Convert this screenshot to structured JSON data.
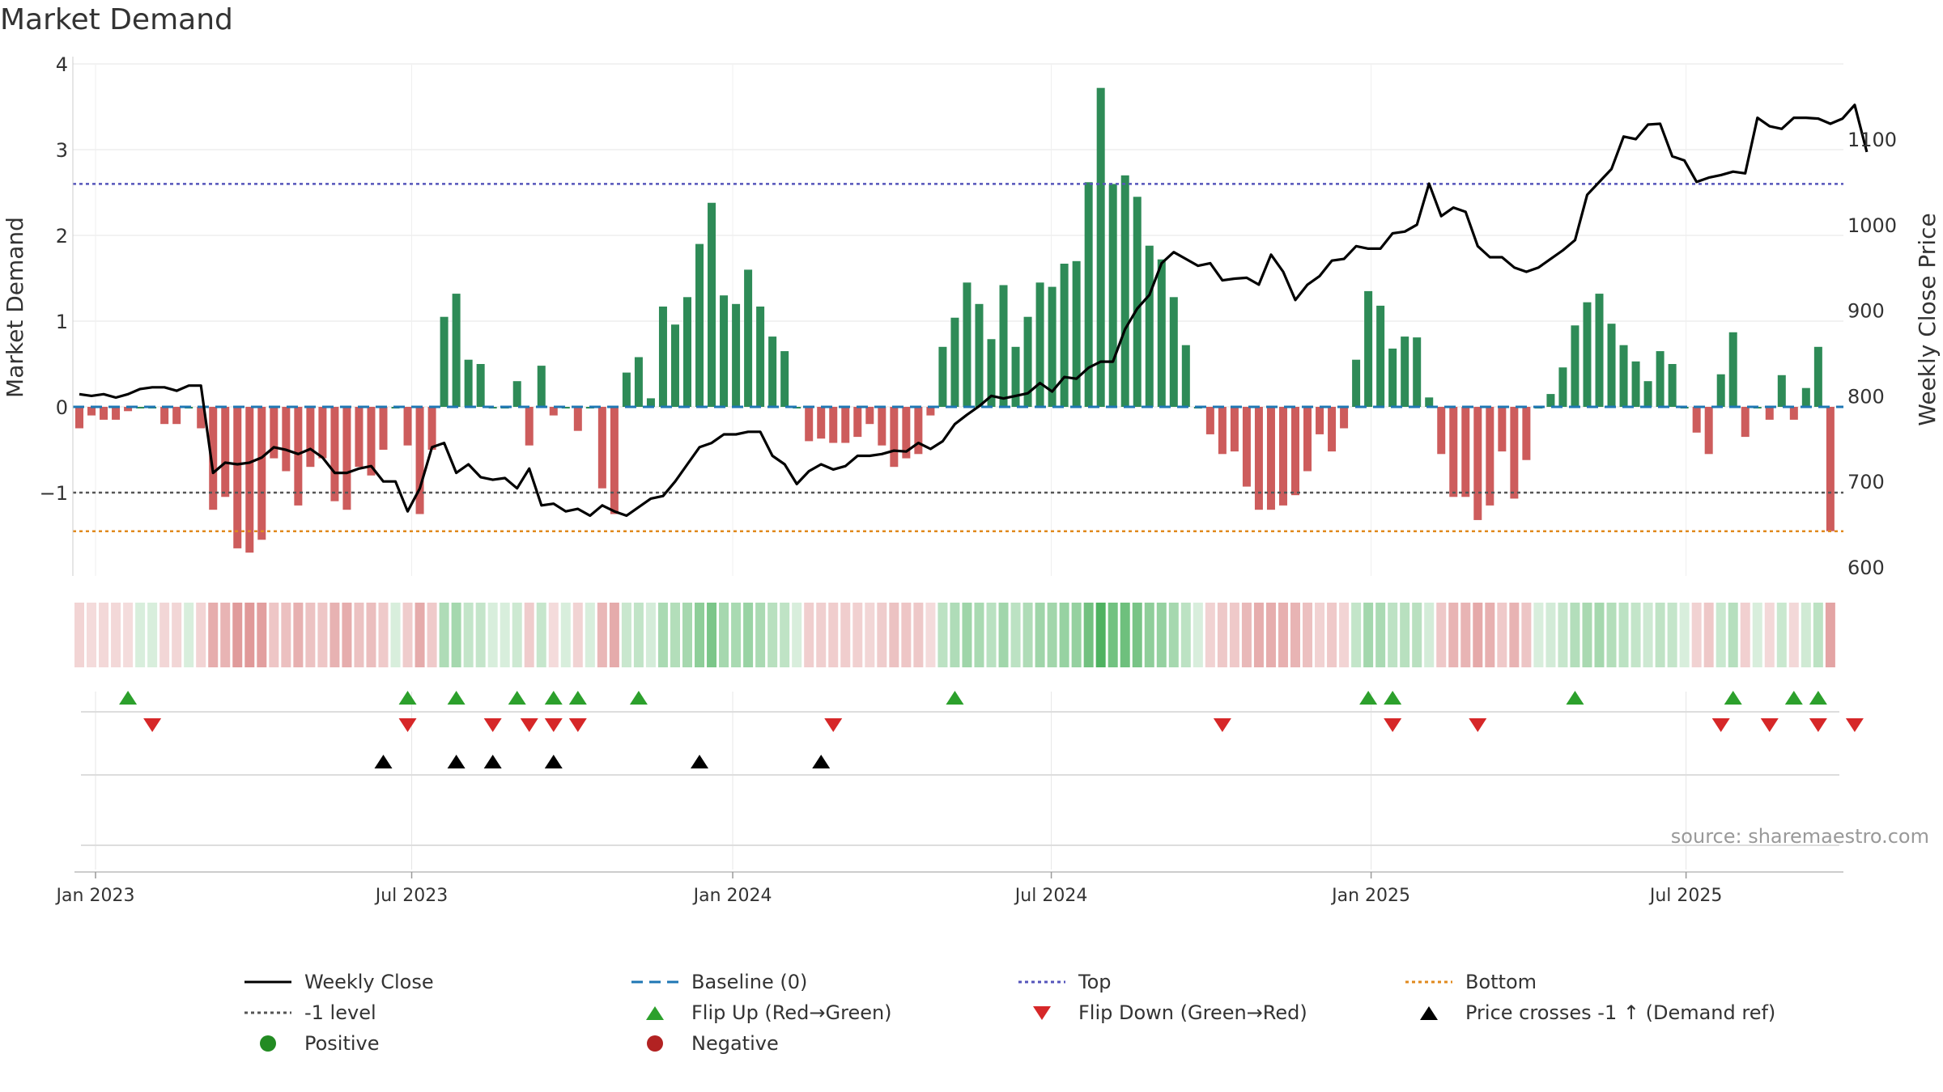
{
  "chart_data": {
    "type": "bar",
    "title": "Market Demand",
    "ylabel": "Market Demand",
    "y2label": "Weekly Close Price",
    "ylim": [
      -2,
      4
    ],
    "y_ticks": [
      "4",
      "3",
      "2",
      "1",
      "0",
      "−1"
    ],
    "y2lim": [
      600,
      1200
    ],
    "y2_ticks": [
      "1100",
      "1000",
      "900",
      "800",
      "700",
      "600"
    ],
    "x_tick_labels": [
      "Jan 2023",
      "Jul 2023",
      "Jan 2024",
      "Jul 2024",
      "Jan 2025",
      "Jul 2025"
    ],
    "x_tick_weeks": [
      0,
      26,
      52.4,
      78.6,
      104.9,
      130.8
    ],
    "levels": {
      "top": 2.6,
      "bottom": -1.45,
      "minus_one": -1,
      "baseline": 0
    },
    "series": [
      {
        "name": "Market Demand",
        "values": [
          -0.25,
          -0.1,
          -0.15,
          -0.15,
          -0.05,
          0,
          0,
          -0.2,
          -0.2,
          0,
          -0.25,
          -1.2,
          -1.05,
          -1.65,
          -1.7,
          -1.55,
          -0.6,
          -0.75,
          -1.15,
          -0.7,
          -0.6,
          -1.1,
          -1.2,
          -0.7,
          -0.8,
          -0.5,
          0,
          -0.45,
          -1.25,
          -0.5,
          1.05,
          1.32,
          0.55,
          0.5,
          0,
          0,
          0.3,
          -0.45,
          0.48,
          -0.1,
          0,
          -0.28,
          0,
          -0.95,
          -1.25,
          0.4,
          0.58,
          0.1,
          1.17,
          0.96,
          1.28,
          1.9,
          2.38,
          1.3,
          1.2,
          1.6,
          1.17,
          0.82,
          0.65,
          0,
          -0.4,
          -0.37,
          -0.42,
          -0.42,
          -0.35,
          -0.2,
          -0.45,
          -0.7,
          -0.6,
          -0.55,
          -0.1,
          0.7,
          1.04,
          1.45,
          1.2,
          0.79,
          1.42,
          0.7,
          1.05,
          1.45,
          1.4,
          1.67,
          1.7,
          2.62,
          3.72,
          2.6,
          2.7,
          2.45,
          1.88,
          1.72,
          1.28,
          0.72,
          0,
          -0.32,
          -0.55,
          -0.52,
          -0.93,
          -1.2,
          -1.2,
          -1.15,
          -1.03,
          -0.75,
          -0.32,
          -0.52,
          -0.25,
          0.55,
          1.35,
          1.18,
          0.68,
          0.82,
          0.81,
          0.11,
          -0.55,
          -1.05,
          -1.05,
          -1.32,
          -1.15,
          -0.52,
          -1.07,
          -0.62,
          0,
          0.15,
          0.46,
          0.95,
          1.22,
          1.32,
          0.97,
          0.72,
          0.53,
          0.3,
          0.65,
          0.5,
          0,
          -0.3,
          -0.55,
          0.38,
          0.87,
          -0.35,
          0,
          -0.15,
          0.37,
          -0.15,
          0.22,
          0.7,
          -1.45
        ]
      },
      {
        "name": "Weekly Close",
        "values": [
          802,
          800,
          802,
          798,
          802,
          808,
          810,
          810,
          806,
          812,
          812,
          710,
          722,
          720,
          722,
          728,
          740,
          737,
          732,
          738,
          728,
          710,
          710,
          715,
          718,
          700,
          700,
          665,
          692,
          740,
          745,
          710,
          720,
          705,
          702,
          704,
          692,
          715,
          672,
          674,
          665,
          668,
          660,
          672,
          665,
          660,
          670,
          680,
          683,
          700,
          720,
          740,
          745,
          755,
          755,
          758,
          758,
          730,
          720,
          697,
          712,
          720,
          714,
          718,
          730,
          730,
          732,
          736,
          735,
          745,
          738,
          747,
          767,
          778,
          788,
          800,
          797,
          800,
          803,
          815,
          805,
          822,
          820,
          833,
          840,
          840,
          878,
          902,
          918,
          955,
          968,
          960,
          952,
          955,
          935,
          937,
          938,
          930,
          965,
          945,
          912,
          930,
          940,
          958,
          960,
          975,
          972,
          972,
          990,
          992,
          1000,
          1048,
          1010,
          1020,
          1015,
          975,
          962,
          962,
          950,
          945,
          950,
          960,
          970,
          982,
          1035,
          1050,
          1065,
          1103,
          1100,
          1117,
          1118,
          1080,
          1075,
          1050,
          1055,
          1058,
          1062,
          1060,
          1125,
          1115,
          1112,
          1125,
          1125,
          1124,
          1118,
          1124,
          1140,
          1085
        ]
      }
    ],
    "flip_up_weeks": [
      4,
      27,
      31,
      36,
      39,
      41,
      46,
      72,
      106,
      108,
      123,
      136,
      141,
      143
    ],
    "flip_down_weeks": [
      6,
      27,
      34,
      37,
      39,
      41,
      62,
      94,
      108,
      115,
      135,
      139,
      143,
      146
    ],
    "price_cross_weeks": [
      25,
      31,
      34,
      39,
      51,
      61
    ],
    "annotation": "source: sharemaestro.com",
    "legend": [
      {
        "label": "Weekly Close",
        "kind": "line",
        "color": "#000000",
        "dash": ""
      },
      {
        "label": "Baseline (0)",
        "kind": "line",
        "color": "#1f77b4",
        "dash": "14,8"
      },
      {
        "label": "Top",
        "kind": "line",
        "color": "#5555bb",
        "dash": "4,4"
      },
      {
        "label": "Bottom",
        "kind": "line",
        "color": "#e08a1e",
        "dash": "4,4"
      },
      {
        "label": "-1 level",
        "kind": "line",
        "color": "#555555",
        "dash": "4,4"
      },
      {
        "label": "Flip Up (Red→Green)",
        "kind": "tri-up",
        "color": "#2ca02c"
      },
      {
        "label": "Flip Down (Green→Red)",
        "kind": "tri-down",
        "color": "#d62728"
      },
      {
        "label": "Price crosses -1 ↑ (Demand ref)",
        "kind": "tri-up",
        "color": "#000000"
      },
      {
        "label": "Positive",
        "kind": "dot",
        "color": "#228b22"
      },
      {
        "label": "Negative",
        "kind": "dot",
        "color": "#b22222"
      }
    ],
    "colors": {
      "positive": "#2e8b57",
      "negative": "#cd5c5c",
      "price": "#000000",
      "baseline": "#1f77b4",
      "top": "#5555bb",
      "bottom": "#e08a1e",
      "minus_one": "#555555"
    }
  }
}
